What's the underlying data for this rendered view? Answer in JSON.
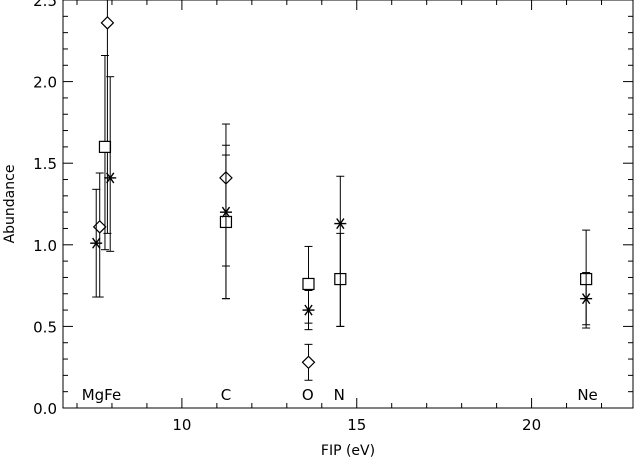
{
  "chart_data": {
    "type": "scatter",
    "title": "",
    "xlabel": "FIP (eV)",
    "ylabel": "Abundance",
    "xlim": [
      6.6,
      22.9
    ],
    "ylim": [
      0.0,
      2.5
    ],
    "x_ticks": [
      10,
      15,
      20
    ],
    "y_ticks": [
      0.0,
      0.5,
      1.0,
      1.5,
      2.0,
      2.5
    ],
    "x_tick_labels": [
      "10",
      "15",
      "20"
    ],
    "y_tick_labels": [
      "0.0",
      "0.5",
      "1.0",
      "1.5",
      "2.0",
      "2.5"
    ],
    "grid": false,
    "legend": "none",
    "element_labels": [
      {
        "text": "MgFe",
        "x": 7.7,
        "y": 0.08
      },
      {
        "text": "C",
        "x": 11.26,
        "y": 0.08
      },
      {
        "text": "O",
        "x": 13.6,
        "y": 0.08
      },
      {
        "text": "N",
        "x": 14.5,
        "y": 0.08
      },
      {
        "text": "Ne",
        "x": 21.6,
        "y": 0.08
      }
    ],
    "series": [
      {
        "marker": "diamond",
        "points": [
          {
            "x": 7.65,
            "y": 1.11,
            "ylo": 0.68,
            "yhi": 1.44
          },
          {
            "x": 7.87,
            "y": 2.36,
            "ylo": 1.07,
            "yhi": 2.5
          },
          {
            "x": 11.26,
            "y": 1.41,
            "ylo": 0.87,
            "yhi": 1.74
          },
          {
            "x": 13.62,
            "y": 0.28,
            "ylo": 0.17,
            "yhi": 0.39
          }
        ]
      },
      {
        "marker": "square",
        "points": [
          {
            "x": 7.8,
            "y": 1.6,
            "ylo": 0.97,
            "yhi": 2.16
          },
          {
            "x": 11.26,
            "y": 1.14,
            "ylo": 0.67,
            "yhi": 1.61
          },
          {
            "x": 13.62,
            "y": 0.76,
            "ylo": 0.52,
            "yhi": 0.99
          },
          {
            "x": 14.53,
            "y": 0.79,
            "ylo": 0.5,
            "yhi": 1.07
          },
          {
            "x": 21.56,
            "y": 0.79,
            "ylo": 0.49,
            "yhi": 1.09
          }
        ]
      },
      {
        "marker": "asterisk",
        "points": [
          {
            "x": 7.55,
            "y": 1.01,
            "ylo": 0.68,
            "yhi": 1.34
          },
          {
            "x": 7.95,
            "y": 1.41,
            "ylo": 0.96,
            "yhi": 2.03
          },
          {
            "x": 11.26,
            "y": 1.2,
            "ylo": 0.67,
            "yhi": 1.55
          },
          {
            "x": 13.62,
            "y": 0.6,
            "ylo": 0.48,
            "yhi": 0.72
          },
          {
            "x": 14.53,
            "y": 1.13,
            "ylo": 0.5,
            "yhi": 1.42
          },
          {
            "x": 21.56,
            "y": 0.67,
            "ylo": 0.51,
            "yhi": 0.83
          }
        ]
      }
    ]
  }
}
